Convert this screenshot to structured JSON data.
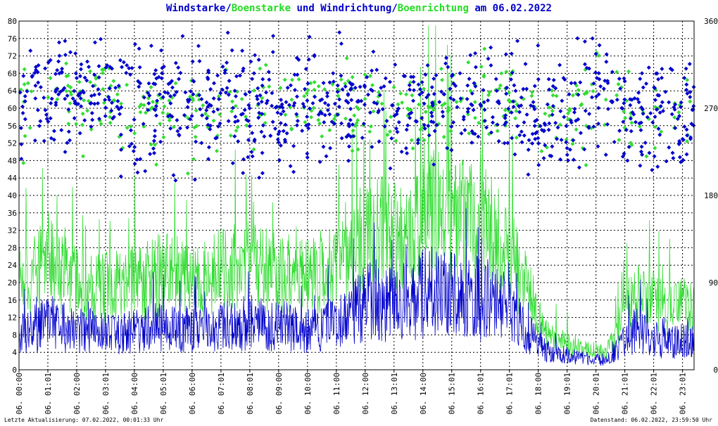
{
  "title": {
    "part1": "Windstarke",
    "sep1": "/",
    "part2": "Boenstarke",
    "part3": " und ",
    "part4": "Windrichtung",
    "sep2": "/",
    "part5": "Boenrichtung",
    "part6": " am 06.02.2022"
  },
  "footer": {
    "left": "Letzte Aktualisierung: 07.02.2022, 00:01:33 Uhr",
    "right": "Datenstand: 06.02.2022, 23:59:50 Uhr"
  },
  "colors": {
    "wind": "#0000cc",
    "gust": "#33dd33",
    "grid": "#000000",
    "background": "#ffffff"
  },
  "chart_data": {
    "type": "line",
    "title": "Windstarke/Boenstarke und Windrichtung/Boenrichtung am 06.02.2022",
    "ylim_left": [
      0,
      80
    ],
    "yticks_left": [
      0,
      4,
      8,
      12,
      16,
      20,
      24,
      28,
      32,
      36,
      40,
      44,
      48,
      52,
      56,
      60,
      64,
      68,
      72,
      76,
      80
    ],
    "ylim_right": [
      0,
      360
    ],
    "yticks_right": [
      0,
      90,
      180,
      270,
      360
    ],
    "xlabels": [
      "06. 00:00",
      "06. 01:01",
      "06. 02:00",
      "06. 03:01",
      "06. 04:00",
      "06. 05:01",
      "06. 06:00",
      "06. 07:01",
      "06. 08:01",
      "06. 09:00",
      "06. 10:00",
      "06. 11:00",
      "06. 12:00",
      "06. 13:01",
      "06. 14:00",
      "06. 15:01",
      "06. 16:01",
      "06. 17:01",
      "06. 18:00",
      "06. 19:01",
      "06. 20:01",
      "06. 21:01",
      "06. 22:01",
      "06. 23:01"
    ],
    "grid": true,
    "series": [
      {
        "name": "Windstarke",
        "kind": "line",
        "axis": "left",
        "hourly_mean": [
          8,
          11,
          9,
          8,
          9,
          10,
          9,
          10,
          11,
          10,
          9,
          11,
          16,
          15,
          18,
          17,
          16,
          11,
          4,
          3,
          2,
          9,
          6,
          7
        ]
      },
      {
        "name": "Boenstarke",
        "kind": "line",
        "axis": "left",
        "hourly_mean": [
          20,
          25,
          19,
          19,
          20,
          22,
          20,
          23,
          24,
          22,
          21,
          25,
          32,
          30,
          36,
          34,
          32,
          23,
          8,
          5,
          4,
          18,
          14,
          15
        ]
      },
      {
        "name": "Windrichtung",
        "kind": "scatter",
        "axis": "right",
        "hourly_mean": [
          285,
          280,
          285,
          280,
          275,
          275,
          275,
          280,
          275,
          270,
          275,
          280,
          275,
          270,
          280,
          280,
          285,
          270,
          265,
          270,
          290,
          260,
          265,
          260
        ]
      },
      {
        "name": "Boenrichtung",
        "kind": "scatter",
        "axis": "right",
        "hourly_mean": [
          285,
          285,
          280,
          280,
          275,
          270,
          275,
          270,
          270,
          275,
          280,
          275,
          270,
          265,
          280,
          285,
          280,
          270,
          265,
          265,
          290,
          260,
          260,
          260
        ]
      }
    ]
  }
}
